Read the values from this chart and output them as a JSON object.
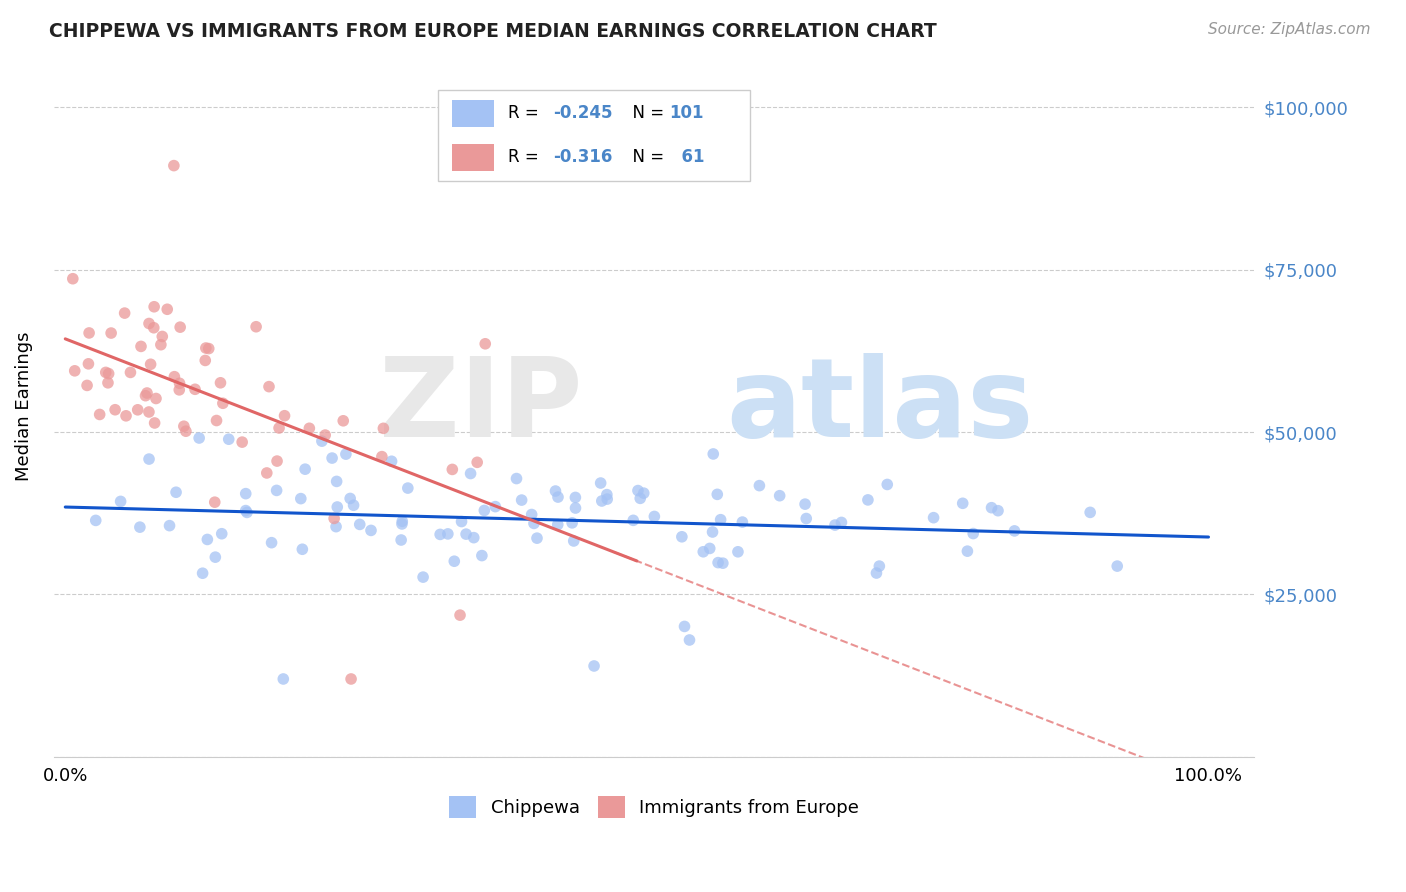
{
  "title": "CHIPPEWA VS IMMIGRANTS FROM EUROPE MEDIAN EARNINGS CORRELATION CHART",
  "source": "Source: ZipAtlas.com",
  "ylabel": "Median Earnings",
  "ytick_labels": [
    "",
    "$25,000",
    "$50,000",
    "$75,000",
    "$100,000"
  ],
  "ytick_values": [
    0,
    25000,
    50000,
    75000,
    100000
  ],
  "xlim": [
    -0.01,
    1.04
  ],
  "ylim": [
    0,
    108000
  ],
  "chippewa_color": "#a4c2f4",
  "immigrants_color": "#ea9999",
  "chippewa_line_color": "#1155cc",
  "immigrants_line_color": "#e06666",
  "dash_line_color": "#e06666",
  "grid_color": "#cccccc",
  "watermark_zip_color": "#e8e8e8",
  "watermark_atlas_color": "#cce0f5",
  "title_color": "#222222",
  "source_color": "#999999",
  "ytick_color": "#4a86c8",
  "legend_border_color": "#cccccc",
  "chip_R": "-0.245",
  "chip_N": "101",
  "imm_R": "-0.316",
  "imm_N": "61",
  "R_label_color": "#4a86c8",
  "N_label_color": "#4a86c8",
  "chip_scatter_seed": 42,
  "imm_scatter_seed": 99
}
